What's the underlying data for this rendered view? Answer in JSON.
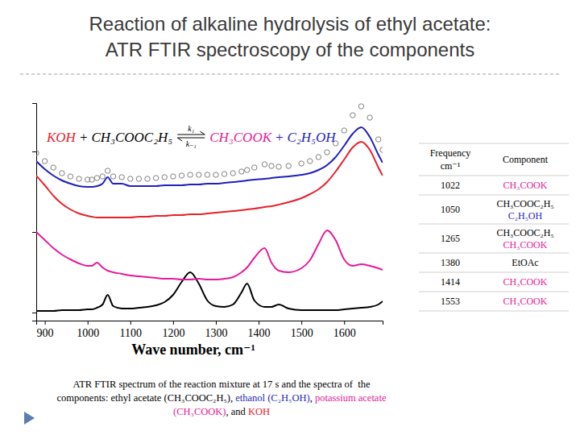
{
  "slide": {
    "title": [
      "Reaction of alkaline hydrolysis of ethyl acetate:",
      "ATR FTIR spectroscopy of the components"
    ],
    "table": {
      "header": {
        "frequency": [
          "Frequency",
          "cm⁻¹"
        ],
        "component": "Component"
      },
      "rows": [
        {
          "frequency": 1022,
          "components": [
            "CH₃COOK"
          ]
        },
        {
          "frequency": 1050,
          "components": [
            "CH₃COOC₂H₅",
            "C₂H₅OH"
          ]
        },
        {
          "frequency": 1265,
          "components": [
            "CH₃COOC₂H₅",
            "CH₃COOK"
          ]
        },
        {
          "frequency": 1380,
          "components": [
            "EtOAc"
          ]
        },
        {
          "frequency": 1414,
          "components": [
            "CH₃COOK"
          ]
        },
        {
          "frequency": 1553,
          "components": [
            "CH₃COOK"
          ]
        }
      ]
    },
    "caption": [
      [
        {
          "text": "ATR FTIR spectrum of the reaction mixture at 17 s and the spectra of  the",
          "color": "#000000"
        }
      ],
      [
        {
          "text": "components: ethyl acetate (CH₃COOC₂H₅), ",
          "color": "#000000"
        },
        {
          "text": "ethanol (C₂H₅OH)",
          "color": "#1f1fbf"
        },
        {
          "text": ", ",
          "color": "#000000"
        },
        {
          "text": "potassium acetate",
          "color": "#e6199a"
        }
      ],
      [
        {
          "text": "(CH₃COOK)",
          "color": "#e6199a"
        },
        {
          "text": ", and ",
          "color": "#000000"
        },
        {
          "text": "KOH",
          "color": "#e8202a"
        }
      ]
    ]
  },
  "chart_data": {
    "type": "line",
    "xlabel": "Wave number, cm⁻¹",
    "xlim": [
      880,
      1690
    ],
    "xticks": [
      900,
      1000,
      1100,
      1200,
      1300,
      1400,
      1500,
      1600
    ],
    "ylim": [
      -0.1,
      2.6
    ],
    "yticks": [
      0,
      1,
      2
    ],
    "tick_labels": "x",
    "annotations": {
      "plus": "+",
      "k_forward": "k₁",
      "k_backward": "k₋₁"
    },
    "x": [
      880,
      900,
      920,
      940,
      960,
      980,
      1000,
      1010,
      1022,
      1035,
      1047,
      1060,
      1080,
      1100,
      1120,
      1140,
      1160,
      1180,
      1200,
      1220,
      1240,
      1260,
      1280,
      1300,
      1320,
      1340,
      1360,
      1373,
      1390,
      1414,
      1430,
      1447,
      1470,
      1500,
      1520,
      1540,
      1560,
      1580,
      1600,
      1620,
      1640,
      1660,
      1680,
      1690
    ],
    "series": [
      {
        "name": "KOH",
        "color": "#e8202a",
        "type": "line",
        "values": [
          1.7,
          1.58,
          1.45,
          1.35,
          1.28,
          1.23,
          1.2,
          1.19,
          1.18,
          1.18,
          1.18,
          1.18,
          1.18,
          1.18,
          1.19,
          1.19,
          1.2,
          1.2,
          1.21,
          1.21,
          1.22,
          1.22,
          1.23,
          1.24,
          1.25,
          1.26,
          1.27,
          1.28,
          1.29,
          1.31,
          1.32,
          1.34,
          1.37,
          1.42,
          1.47,
          1.53,
          1.62,
          1.75,
          1.9,
          2.05,
          2.12,
          2.02,
          1.8,
          1.7
        ]
      },
      {
        "name": "CH₃COOC₂H₅",
        "color": "#000000",
        "type": "line",
        "values": [
          0.02,
          0.02,
          0.02,
          0.03,
          0.03,
          0.03,
          0.04,
          0.04,
          0.06,
          0.1,
          0.22,
          0.08,
          0.05,
          0.05,
          0.06,
          0.07,
          0.09,
          0.13,
          0.22,
          0.38,
          0.5,
          0.36,
          0.15,
          0.08,
          0.07,
          0.1,
          0.25,
          0.36,
          0.15,
          0.07,
          0.07,
          0.1,
          0.05,
          0.03,
          0.03,
          0.03,
          0.03,
          0.03,
          0.04,
          0.05,
          0.06,
          0.07,
          0.1,
          0.14
        ]
      },
      {
        "name": "CH₃COOK",
        "color": "#e6199a",
        "type": "line",
        "values": [
          1.0,
          0.9,
          0.8,
          0.72,
          0.66,
          0.61,
          0.58,
          0.58,
          0.62,
          0.56,
          0.52,
          0.5,
          0.48,
          0.46,
          0.45,
          0.44,
          0.43,
          0.42,
          0.42,
          0.41,
          0.41,
          0.42,
          0.41,
          0.41,
          0.42,
          0.44,
          0.5,
          0.56,
          0.68,
          0.8,
          0.62,
          0.52,
          0.5,
          0.55,
          0.65,
          0.85,
          1.02,
          0.9,
          0.66,
          0.58,
          0.6,
          0.58,
          0.55,
          0.53
        ]
      },
      {
        "name": "C₂H₅OH",
        "color": "#1f1fbf",
        "type": "line",
        "values": [
          1.88,
          1.78,
          1.7,
          1.64,
          1.6,
          1.57,
          1.56,
          1.56,
          1.57,
          1.6,
          1.68,
          1.6,
          1.6,
          1.57,
          1.57,
          1.57,
          1.57,
          1.58,
          1.58,
          1.58,
          1.59,
          1.59,
          1.6,
          1.6,
          1.61,
          1.62,
          1.63,
          1.64,
          1.65,
          1.66,
          1.67,
          1.68,
          1.69,
          1.71,
          1.73,
          1.77,
          1.83,
          1.93,
          2.07,
          2.22,
          2.3,
          2.18,
          1.96,
          1.86
        ]
      },
      {
        "color": "#808080",
        "type": "scatter",
        "marker": "circle",
        "values": [
          1.98,
          1.88,
          1.8,
          1.73,
          1.69,
          1.66,
          1.65,
          1.65,
          1.67,
          1.69,
          1.76,
          1.69,
          1.68,
          1.66,
          1.66,
          1.66,
          1.67,
          1.68,
          1.69,
          1.7,
          1.71,
          1.71,
          1.71,
          1.71,
          1.72,
          1.73,
          1.75,
          1.77,
          1.8,
          1.84,
          1.82,
          1.81,
          1.82,
          1.85,
          1.88,
          1.93,
          1.99,
          2.1,
          2.26,
          2.45,
          2.56,
          2.42,
          2.15,
          2.02
        ]
      }
    ]
  }
}
